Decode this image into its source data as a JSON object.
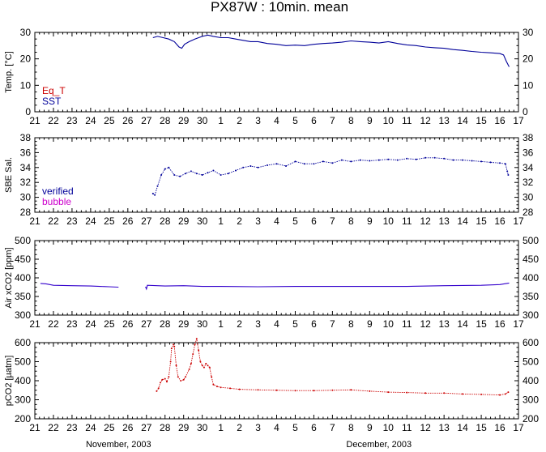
{
  "chart_data": {
    "title": "PX87W : 10min. mean",
    "x": {
      "tick_labels": [
        "21",
        "22",
        "23",
        "24",
        "25",
        "26",
        "27",
        "28",
        "29",
        "30",
        "1",
        "2",
        "3",
        "4",
        "5",
        "6",
        "7",
        "8",
        "9",
        "10",
        "11",
        "12",
        "13",
        "14",
        "15",
        "16",
        "17"
      ],
      "month_labels": [
        {
          "label": "November, 2003",
          "at_day_index": 4.5
        },
        {
          "label": "December, 2003",
          "at_day_index": 18.5
        }
      ],
      "range_day_index": [
        0,
        26
      ]
    },
    "panels": [
      {
        "type": "line",
        "ylabel": "Temp. [°C]",
        "ylim": [
          0,
          30
        ],
        "yticks": [
          0,
          10,
          20,
          30
        ],
        "legend": [
          {
            "name": "Eq_T",
            "color": "#cc0000"
          },
          {
            "name": "SST",
            "color": "#000099"
          }
        ],
        "series": [
          {
            "name": "SST",
            "color": "#000099",
            "points": [
              [
                6.35,
                28.0
              ],
              [
                6.6,
                28.5
              ],
              [
                6.9,
                28.0
              ],
              [
                7.2,
                27.5
              ],
              [
                7.5,
                26.5
              ],
              [
                7.75,
                24.5
              ],
              [
                7.9,
                24.0
              ],
              [
                8.05,
                25.5
              ],
              [
                8.3,
                26.5
              ],
              [
                8.6,
                27.5
              ],
              [
                9.0,
                28.5
              ],
              [
                9.3,
                29.0
              ],
              [
                9.6,
                28.5
              ],
              [
                10.0,
                28.0
              ],
              [
                10.4,
                28.0
              ],
              [
                10.8,
                27.5
              ],
              [
                11.2,
                27.0
              ],
              [
                11.6,
                26.5
              ],
              [
                12.0,
                26.5
              ],
              [
                12.5,
                25.8
              ],
              [
                13.0,
                25.5
              ],
              [
                13.5,
                25.0
              ],
              [
                14.0,
                25.2
              ],
              [
                14.5,
                25.0
              ],
              [
                15.0,
                25.5
              ],
              [
                15.5,
                25.8
              ],
              [
                16.0,
                26.0
              ],
              [
                16.5,
                26.3
              ],
              [
                17.0,
                26.8
              ],
              [
                17.5,
                26.5
              ],
              [
                18.0,
                26.3
              ],
              [
                18.5,
                26.0
              ],
              [
                19.0,
                26.5
              ],
              [
                19.5,
                25.8
              ],
              [
                20.0,
                25.3
              ],
              [
                20.5,
                25.0
              ],
              [
                21.0,
                24.5
              ],
              [
                21.5,
                24.2
              ],
              [
                22.0,
                24.0
              ],
              [
                22.5,
                23.5
              ],
              [
                23.0,
                23.2
              ],
              [
                23.5,
                22.8
              ],
              [
                24.0,
                22.5
              ],
              [
                24.5,
                22.3
              ],
              [
                25.0,
                22.0
              ],
              [
                25.2,
                21.5
              ],
              [
                25.35,
                19.0
              ],
              [
                25.5,
                17.0
              ]
            ]
          }
        ]
      },
      {
        "type": "scatter",
        "ylabel": "SBE Sal.",
        "ylim": [
          28,
          38
        ],
        "yticks": [
          28,
          30,
          32,
          34,
          36,
          38
        ],
        "legend": [
          {
            "name": "verified",
            "color": "#000099"
          },
          {
            "name": "bubble",
            "color": "#cc00cc"
          }
        ],
        "series": [
          {
            "name": "verified",
            "color": "#000099",
            "points": [
              [
                6.35,
                30.5
              ],
              [
                6.45,
                30.3
              ],
              [
                6.6,
                31.5
              ],
              [
                6.8,
                33.0
              ],
              [
                7.0,
                33.8
              ],
              [
                7.2,
                34.0
              ],
              [
                7.5,
                33.0
              ],
              [
                7.8,
                32.8
              ],
              [
                8.1,
                33.2
              ],
              [
                8.4,
                33.5
              ],
              [
                8.7,
                33.2
              ],
              [
                9.0,
                33.0
              ],
              [
                9.3,
                33.3
              ],
              [
                9.6,
                33.6
              ],
              [
                10.0,
                33.0
              ],
              [
                10.4,
                33.2
              ],
              [
                10.8,
                33.6
              ],
              [
                11.2,
                34.0
              ],
              [
                11.6,
                34.2
              ],
              [
                12.0,
                34.0
              ],
              [
                12.5,
                34.3
              ],
              [
                13.0,
                34.5
              ],
              [
                13.5,
                34.2
              ],
              [
                14.0,
                34.8
              ],
              [
                14.5,
                34.5
              ],
              [
                15.0,
                34.5
              ],
              [
                15.5,
                34.8
              ],
              [
                16.0,
                34.6
              ],
              [
                16.5,
                35.0
              ],
              [
                17.0,
                34.8
              ],
              [
                17.5,
                35.0
              ],
              [
                18.0,
                34.9
              ],
              [
                18.5,
                35.0
              ],
              [
                19.0,
                35.1
              ],
              [
                19.5,
                35.0
              ],
              [
                20.0,
                35.2
              ],
              [
                20.5,
                35.1
              ],
              [
                21.0,
                35.3
              ],
              [
                21.5,
                35.3
              ],
              [
                22.0,
                35.2
              ],
              [
                22.5,
                35.0
              ],
              [
                23.0,
                35.0
              ],
              [
                23.5,
                34.9
              ],
              [
                24.0,
                34.8
              ],
              [
                24.5,
                34.7
              ],
              [
                25.0,
                34.6
              ],
              [
                25.3,
                34.5
              ],
              [
                25.4,
                33.5
              ],
              [
                25.45,
                33.0
              ]
            ]
          }
        ]
      },
      {
        "type": "line",
        "ylabel": "Air xCO2 [ppm]",
        "ylim": [
          300,
          500
        ],
        "yticks": [
          300,
          350,
          400,
          450,
          500
        ],
        "series": [
          {
            "name": "Air xCO2",
            "color": "#3300cc",
            "segments": [
              [
                [
                  0.3,
                  385
                ],
                [
                  0.6,
                  384
                ],
                [
                  1.0,
                  380
                ],
                [
                  2.0,
                  379
                ],
                [
                  3.0,
                  378
                ],
                [
                  3.5,
                  377
                ],
                [
                  4.0,
                  376
                ],
                [
                  4.5,
                  375
                ]
              ],
              [
                [
                  5.95,
                  376
                ],
                [
                  6.0,
                  370
                ],
                [
                  6.05,
                  380
                ],
                [
                  7.0,
                  378
                ],
                [
                  8.0,
                  379
                ],
                [
                  9.0,
                  377
                ],
                [
                  10.0,
                  377
                ],
                [
                  12.0,
                  376
                ],
                [
                  14.0,
                  377
                ],
                [
                  16.0,
                  377
                ],
                [
                  18.0,
                  377
                ],
                [
                  20.0,
                  377
                ],
                [
                  22.0,
                  379
                ],
                [
                  24.0,
                  380
                ],
                [
                  25.0,
                  382
                ],
                [
                  25.5,
                  386
                ]
              ]
            ]
          }
        ]
      },
      {
        "type": "scatter",
        "ylabel": "pCO2 [µatm]",
        "ylim": [
          200,
          600
        ],
        "yticks": [
          200,
          300,
          400,
          500,
          600
        ],
        "series": [
          {
            "name": "pCO2",
            "color": "#cc0000",
            "points": [
              [
                6.55,
                345
              ],
              [
                6.65,
                360
              ],
              [
                6.75,
                390
              ],
              [
                6.85,
                405
              ],
              [
                7.0,
                410
              ],
              [
                7.1,
                395
              ],
              [
                7.2,
                420
              ],
              [
                7.3,
                500
              ],
              [
                7.35,
                570
              ],
              [
                7.45,
                590
              ],
              [
                7.5,
                580
              ],
              [
                7.6,
                480
              ],
              [
                7.7,
                420
              ],
              [
                7.85,
                400
              ],
              [
                8.0,
                405
              ],
              [
                8.1,
                420
              ],
              [
                8.3,
                460
              ],
              [
                8.4,
                490
              ],
              [
                8.5,
                540
              ],
              [
                8.6,
                590
              ],
              [
                8.7,
                620
              ],
              [
                8.8,
                560
              ],
              [
                8.9,
                500
              ],
              [
                9.0,
                480
              ],
              [
                9.1,
                470
              ],
              [
                9.2,
                490
              ],
              [
                9.3,
                480
              ],
              [
                9.4,
                470
              ],
              [
                9.5,
                420
              ],
              [
                9.6,
                380
              ],
              [
                9.8,
                370
              ],
              [
                10.0,
                365
              ],
              [
                10.5,
                360
              ],
              [
                11.0,
                355
              ],
              [
                12.0,
                352
              ],
              [
                13.0,
                350
              ],
              [
                14.0,
                348
              ],
              [
                15.0,
                348
              ],
              [
                16.0,
                350
              ],
              [
                17.0,
                352
              ],
              [
                18.0,
                345
              ],
              [
                19.0,
                340
              ],
              [
                20.0,
                338
              ],
              [
                21.0,
                335
              ],
              [
                22.0,
                335
              ],
              [
                23.0,
                330
              ],
              [
                24.0,
                328
              ],
              [
                25.0,
                325
              ],
              [
                25.3,
                330
              ],
              [
                25.45,
                340
              ]
            ]
          }
        ]
      }
    ]
  }
}
